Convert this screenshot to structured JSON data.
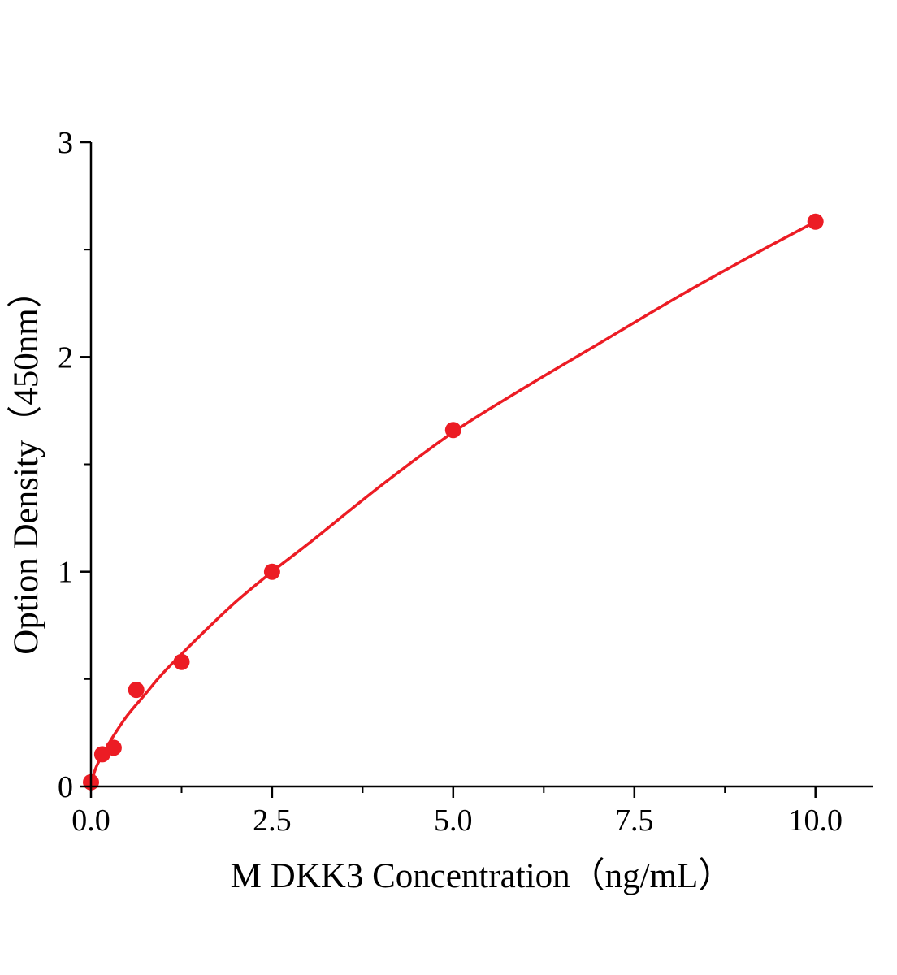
{
  "chart_data": {
    "type": "scatter",
    "title": "",
    "xlabel": "M DKK3 Concentration（ng/mL）",
    "ylabel": "Option Density（450nm）",
    "xlim": [
      0,
      10.8
    ],
    "ylim": [
      0,
      3
    ],
    "x_major_ticks": [
      0.0,
      2.5,
      5.0,
      7.5,
      10.0
    ],
    "x_tick_labels": [
      "0.0",
      "2.5",
      "5.0",
      "7.5",
      "10.0"
    ],
    "x_minor_ticks": [
      1.25,
      3.75,
      6.25,
      8.75
    ],
    "y_major_ticks": [
      0,
      1,
      2,
      3
    ],
    "y_tick_labels": [
      "0",
      "1",
      "2",
      "3"
    ],
    "y_minor_ticks": [
      0.5,
      1.5,
      2.5
    ],
    "grid": false,
    "legend": null,
    "points": {
      "x": [
        0,
        0.156,
        0.313,
        0.625,
        1.25,
        2.5,
        5.0,
        10.0
      ],
      "y": [
        0.02,
        0.15,
        0.18,
        0.45,
        0.58,
        1.0,
        1.66,
        2.63
      ]
    },
    "fit_curve": {
      "x": [
        0,
        0.05,
        0.1,
        0.2,
        0.3,
        0.5,
        0.75,
        1,
        1.5,
        2,
        2.5,
        3,
        4,
        5,
        6,
        7,
        8,
        9,
        10
      ],
      "y": [
        0,
        0.07,
        0.11,
        0.17,
        0.23,
        0.33,
        0.43,
        0.53,
        0.7,
        0.86,
        1.0,
        1.13,
        1.4,
        1.65,
        1.86,
        2.06,
        2.26,
        2.45,
        2.63
      ]
    },
    "colors": {
      "series": "#ec1c24",
      "axis": "#000000",
      "background": "#ffffff"
    },
    "marker_radius": 10,
    "line_width": 3.5
  }
}
